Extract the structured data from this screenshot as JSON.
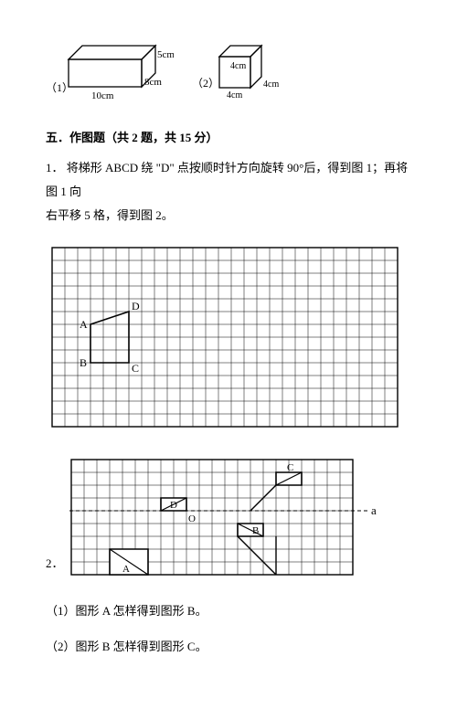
{
  "solids": {
    "cuboid": {
      "label_num": "（1）",
      "w": "10cm",
      "d": "8cm",
      "h": "5cm"
    },
    "cube": {
      "label_num": "（2）",
      "edge": "4cm"
    }
  },
  "section": {
    "title": "五．作图题（共 2 题，共 15 分）"
  },
  "q1": {
    "num": "1．",
    "text1": "将梯形 ABCD 绕 \"D\" 点按顺时针方向旋转 90°后，得到图 1；再将图 1 向",
    "text2": "右平移 5 格，得到图 2。",
    "labels": {
      "A": "A",
      "B": "B",
      "C": "C",
      "D": "D"
    },
    "grid": {
      "cols": 27,
      "rows": 14
    }
  },
  "q2": {
    "num": "2．",
    "labels": {
      "A": "A",
      "B": "B",
      "C": "C",
      "D": "D",
      "O": "O",
      "a": "a"
    },
    "grid": {
      "cols": 22,
      "rows": 9
    },
    "sub1": "（1）图形 A 怎样得到图形 B。",
    "sub2": "（2）图形 B 怎样得到图形 C。"
  },
  "style": {
    "grid_cell": 14,
    "stroke": "#000000",
    "grid_stroke": "#000000",
    "grid_stroke_w": 0.5,
    "shape_stroke_w": 1.5
  }
}
